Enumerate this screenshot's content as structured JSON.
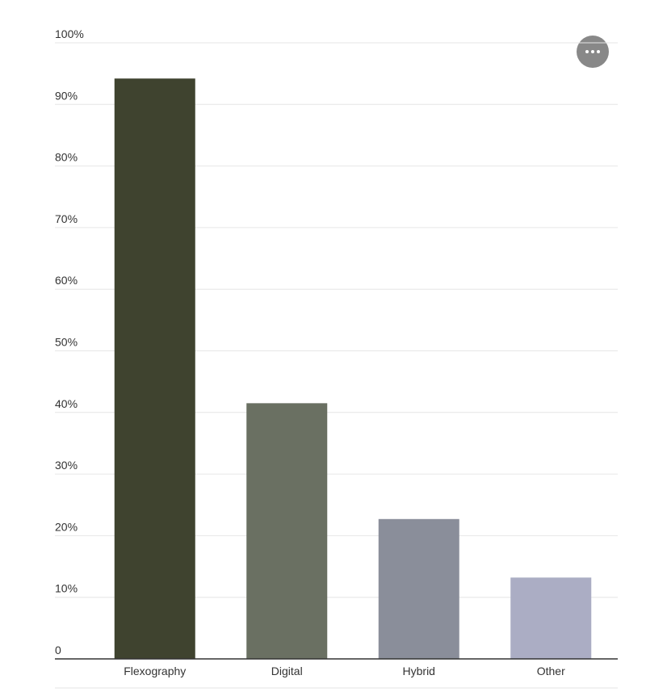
{
  "chart_data": {
    "type": "bar",
    "categories": [
      "Flexography",
      "Digital",
      "Hybrid",
      "Other"
    ],
    "values": [
      94.2,
      41.5,
      22.7,
      13.2
    ],
    "colors": [
      "#3f432f",
      "#6a7062",
      "#8a8e9a",
      "#abadc4"
    ],
    "ylim": [
      0,
      100
    ],
    "yticks": [
      0,
      {
        "value": 10,
        "label": "10%"
      },
      {
        "value": 20,
        "label": "20%"
      },
      {
        "value": 30,
        "label": "30%"
      },
      {
        "value": 40,
        "label": "40%"
      },
      {
        "value": 50,
        "label": "50%"
      },
      {
        "value": 60,
        "label": "60%"
      },
      {
        "value": 70,
        "label": "70%"
      },
      {
        "value": 80,
        "label": "80%"
      },
      {
        "value": 90,
        "label": "90%"
      },
      {
        "value": 100,
        "label": "100%"
      }
    ],
    "grid": true
  }
}
